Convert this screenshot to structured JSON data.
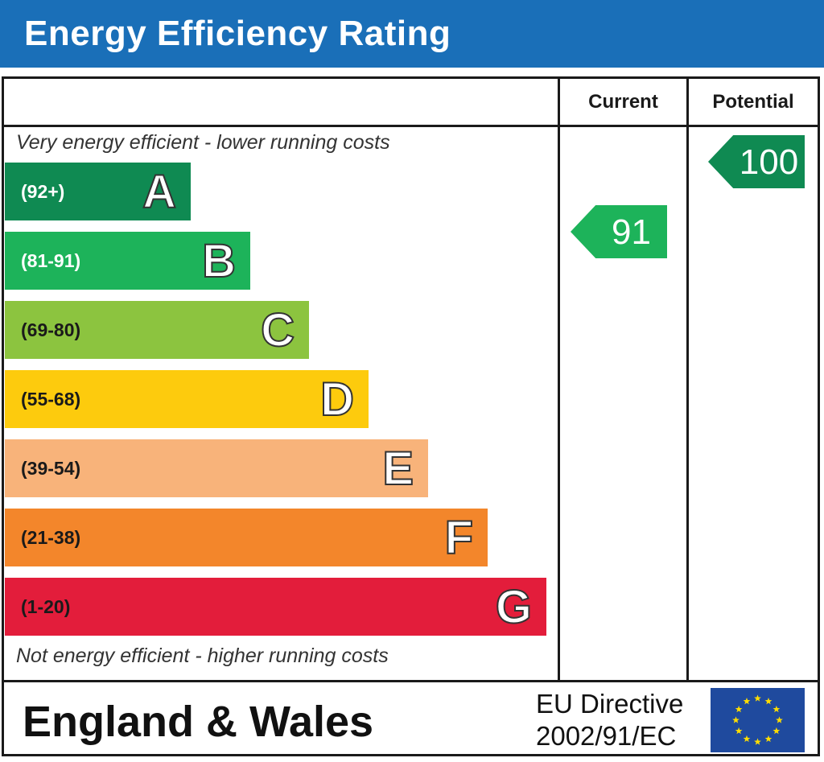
{
  "header": {
    "title": "Energy Efficiency Rating"
  },
  "columns": {
    "current": "Current",
    "potential": "Potential"
  },
  "notes": {
    "top": "Very energy efficient - lower running costs",
    "bottom": "Not energy efficient - higher running costs"
  },
  "chart_data": {
    "type": "bar",
    "title": "Energy Efficiency Rating",
    "bands": [
      {
        "letter": "A",
        "range": "(92+)",
        "color": "#0f8a52",
        "range_color": "#ffffff"
      },
      {
        "letter": "B",
        "range": "(81-91)",
        "color": "#1db35a",
        "range_color": "#ffffff"
      },
      {
        "letter": "C",
        "range": "(69-80)",
        "color": "#8cc43f",
        "range_color": "#1a1a1a"
      },
      {
        "letter": "D",
        "range": "(55-68)",
        "color": "#fdcb0d",
        "range_color": "#1a1a1a"
      },
      {
        "letter": "E",
        "range": "(39-54)",
        "color": "#f8b37a",
        "range_color": "#1a1a1a"
      },
      {
        "letter": "F",
        "range": "(21-38)",
        "color": "#f3862b",
        "range_color": "#1a1a1a"
      },
      {
        "letter": "G",
        "range": "(1-20)",
        "color": "#e31d3b",
        "range_color": "#1a1a1a"
      }
    ],
    "current": {
      "value": "91",
      "band": "B",
      "color": "#1db35a"
    },
    "potential": {
      "value": "100",
      "band": "A",
      "color": "#0f8a52"
    }
  },
  "footer": {
    "region": "England & Wales",
    "directive_line1": "EU Directive",
    "directive_line2": "2002/91/EC",
    "flag_color": "#1f4a9e",
    "star_color": "#ffdd00"
  }
}
